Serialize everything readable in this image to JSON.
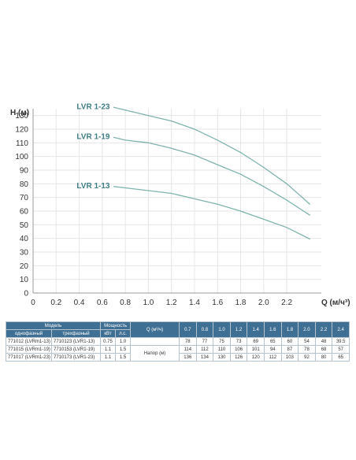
{
  "chart_data": {
    "type": "line",
    "xlabel": "Q (м/ч³)",
    "ylabel": "H (м)",
    "xlim": [
      0,
      2.5
    ],
    "ylim": [
      0,
      135
    ],
    "x_ticks": [
      "0",
      "0.2",
      "0.4",
      "0.6",
      "0.8",
      "1.0",
      "1.2",
      "1.4",
      "1.6",
      "1.8",
      "2.0",
      "2.2"
    ],
    "y_ticks": [
      "0",
      "10",
      "20",
      "30",
      "40",
      "50",
      "60",
      "70",
      "80",
      "90",
      "100",
      "110",
      "120",
      "130"
    ],
    "grid": true,
    "line_color": "#7fb3ad",
    "label_color": "#3f7f85",
    "series": [
      {
        "name": "LVR 1-23",
        "x": [
          0.7,
          0.8,
          1.0,
          1.2,
          1.4,
          1.6,
          1.8,
          2.0,
          2.2,
          2.4
        ],
        "y": [
          136,
          134,
          130,
          126,
          120,
          112,
          103,
          92,
          80,
          65
        ]
      },
      {
        "name": "LVR 1-19",
        "x": [
          0.7,
          0.8,
          1.0,
          1.2,
          1.4,
          1.6,
          1.8,
          2.0,
          2.2,
          2.4
        ],
        "y": [
          114,
          112,
          110,
          106,
          101,
          94,
          87,
          78,
          68,
          57
        ]
      },
      {
        "name": "LVR 1-13",
        "x": [
          0.7,
          0.8,
          1.0,
          1.2,
          1.4,
          1.6,
          1.8,
          2.0,
          2.2,
          2.4
        ],
        "y": [
          78,
          77,
          75,
          73,
          69,
          65,
          60,
          54,
          48,
          39.5
        ]
      }
    ]
  },
  "table": {
    "model_header": "Модель",
    "single_phase_header": "однофазный",
    "three_phase_header": "трехфазный",
    "power_header": "Мощность",
    "kw_header": "кВт",
    "hp_header": "л.с.",
    "q_header": "Q (м³/ч)",
    "q_values": [
      "0.7",
      "0.8",
      "1.0",
      "1.2",
      "1.4",
      "1.6",
      "1.8",
      "2.0",
      "2.2",
      "2.4"
    ],
    "head_label": "Напор (м)",
    "rows": [
      {
        "single": "771012 (LVRm1-13)",
        "three": "7710123 (LVR1-13)",
        "kw": "0.75",
        "hp": "1.0",
        "h": [
          "78",
          "77",
          "75",
          "73",
          "69",
          "65",
          "60",
          "54",
          "48",
          "39.5"
        ]
      },
      {
        "single": "771015 (LVRm1-19)",
        "three": "7710153 (LVR1-19)",
        "kw": "1.1",
        "hp": "1.5",
        "h": [
          "114",
          "112",
          "110",
          "106",
          "101",
          "94",
          "87",
          "78",
          "68",
          "57"
        ]
      },
      {
        "single": "771017 (LVRm1-23)",
        "three": "7710173 (LVR1-23)",
        "kw": "1.1",
        "hp": "1.5",
        "h": [
          "136",
          "134",
          "130",
          "126",
          "120",
          "112",
          "103",
          "92",
          "80",
          "65"
        ]
      }
    ]
  }
}
